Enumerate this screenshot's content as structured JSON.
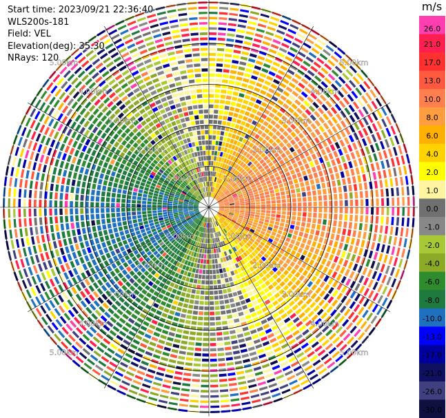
{
  "header": {
    "start_time": "Start time: 2023/09/21 22:36:40",
    "instrument": "WLS200s-181",
    "field": "Field: VEL",
    "elevation": "Elevation(deg): 35.30",
    "nrays": "NRays: 120"
  },
  "colorbar": {
    "unit": "m/s",
    "ticks": [
      "26.0",
      "21.0",
      "17.0",
      "13.0",
      "8.0",
      "4.0",
      "-1.0",
      "-4.0",
      "-8.0",
      "-13.0",
      "-21.0",
      "-26.0",
      "-30.0"
    ],
    "ticks_full": [
      "26.0",
      "21.0",
      "17.0",
      "13.0",
      "10.0",
      "8.0",
      "6.0",
      "4.0",
      "2.0",
      "1.0",
      "0.0",
      "-1.0",
      "-2.0",
      "-4.0",
      "-6.0",
      "-8.0",
      "-10.0",
      "-13.0",
      "-17.0",
      "-21.0",
      "-26.0",
      "-30.0"
    ],
    "colors": [
      "#ff3fb0",
      "#ff1f50",
      "#ff3030",
      "#ff5a40",
      "#ff7f4f",
      "#ff9e40",
      "#ffb000",
      "#ffd200",
      "#ffff00",
      "#fff5a0",
      "#707070",
      "#888888",
      "#a8c838",
      "#8caa28",
      "#2e8b2e",
      "#1e7a3e",
      "#2070c0",
      "#0000ff",
      "#0000a0",
      "#101060",
      "#404080",
      "#101040"
    ]
  },
  "chart_data": {
    "type": "heatmap",
    "title": "",
    "projection": "polar PPI",
    "range_rings_km": [
      1.0,
      2.0,
      3.0,
      4.0,
      5.0
    ],
    "range_ring_labels": [
      "1.00km",
      "2.00km",
      "3.00km",
      "4.00km",
      "5.00km"
    ],
    "azimuth_lines_deg": [
      0,
      30,
      60,
      90,
      120,
      150,
      180,
      210,
      240,
      270,
      300,
      330
    ],
    "nrays": 120,
    "field": "VEL",
    "units": "m/s",
    "vmin": -30.0,
    "vmax": 26.0,
    "pattern": "east sector positive (yellow/orange/red), west sector negative (green), near-zero gray along north-south axis, noisy mixed colors at outer ranges"
  }
}
